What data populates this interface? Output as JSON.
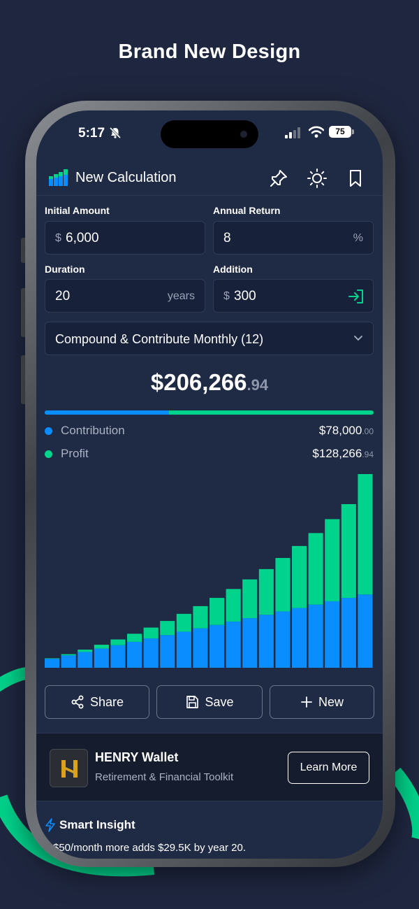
{
  "promo": {
    "title": "Brand New Design"
  },
  "status_bar": {
    "time": "5:17",
    "battery": "75"
  },
  "header": {
    "title": "New Calculation",
    "icons": [
      "logo-bars-icon",
      "pin-icon",
      "sun-icon",
      "bookmark-icon"
    ]
  },
  "form": {
    "initial_amount": {
      "label": "Initial Amount",
      "prefix": "$",
      "value": "6,000"
    },
    "annual_return": {
      "label": "Annual Return",
      "value": "8",
      "suffix": "%"
    },
    "duration": {
      "label": "Duration",
      "value": "20",
      "suffix": "years"
    },
    "addition": {
      "label": "Addition",
      "prefix": "$",
      "value": "300"
    },
    "frequency": {
      "selected": "Compound & Contribute Monthly (12)"
    }
  },
  "result": {
    "total_main": "$206,266",
    "total_cents": ".94",
    "contribution_share": 0.378
  },
  "legend": [
    {
      "label": "Contribution",
      "amount_main": "$78,000",
      "amount_cents": ".00",
      "color": "#0a8dff"
    },
    {
      "label": "Profit",
      "amount_main": "$128,266",
      "amount_cents": ".94",
      "color": "#00d38b"
    }
  ],
  "chart_data": {
    "type": "bar",
    "stacked": true,
    "x": [
      1,
      2,
      3,
      4,
      5,
      6,
      7,
      8,
      9,
      10,
      11,
      12,
      13,
      14,
      15,
      16,
      17,
      18,
      19,
      20
    ],
    "series": [
      {
        "name": "Contribution",
        "color": "#0a8dff",
        "values": [
          9600,
          13200,
          16800,
          20400,
          24000,
          27600,
          31200,
          34800,
          38400,
          42000,
          45600,
          49200,
          52800,
          56400,
          60000,
          63600,
          67200,
          70800,
          74400,
          78000
        ]
      },
      {
        "name": "Profit",
        "color": "#00d38b",
        "values": [
          500,
          1289,
          2519,
          4136,
          6165,
          8636,
          11578,
          15040,
          19033,
          23615,
          28815,
          34690,
          41298,
          48690,
          56928,
          66088,
          76242,
          87471,
          99869,
          128267
        ]
      }
    ],
    "ylim": [
      0,
      206267
    ]
  },
  "actions": {
    "share": "Share",
    "save": "Save",
    "new": "New"
  },
  "ad": {
    "title": "HENRY Wallet",
    "subtitle": "Retirement & Financial Toolkit",
    "cta": "Learn More"
  },
  "insight": {
    "title": "Smart Insight",
    "text": "$50/month more adds $29.5K by year 20."
  }
}
